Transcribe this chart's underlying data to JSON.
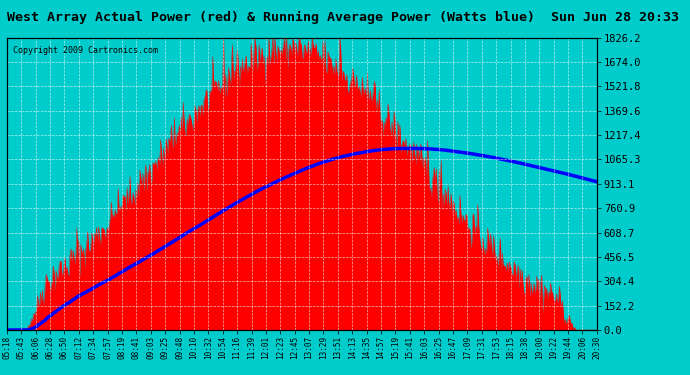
{
  "title": "West Array Actual Power (red) & Running Average Power (Watts blue)  Sun Jun 28 20:33",
  "copyright": "Copyright 2009 Cartronics.com",
  "bg_color": "#00FFFF",
  "plot_bg_color": "#00CCCC",
  "y_ticks": [
    0.0,
    152.2,
    304.4,
    456.5,
    608.7,
    760.9,
    913.1,
    1065.3,
    1217.4,
    1369.6,
    1521.8,
    1674.0,
    1826.2
  ],
  "x_labels": [
    "05:18",
    "05:43",
    "06:06",
    "06:28",
    "06:50",
    "07:12",
    "07:34",
    "07:57",
    "08:19",
    "08:41",
    "09:03",
    "09:25",
    "09:48",
    "10:10",
    "10:32",
    "10:54",
    "11:16",
    "11:39",
    "12:01",
    "12:23",
    "12:45",
    "13:07",
    "13:29",
    "13:51",
    "14:13",
    "14:35",
    "14:57",
    "15:19",
    "15:41",
    "16:03",
    "16:25",
    "16:47",
    "17:09",
    "17:31",
    "17:53",
    "18:15",
    "18:38",
    "19:00",
    "19:22",
    "19:44",
    "20:06",
    "20:30"
  ],
  "ymax": 1826.2,
  "ymin": 0.0
}
